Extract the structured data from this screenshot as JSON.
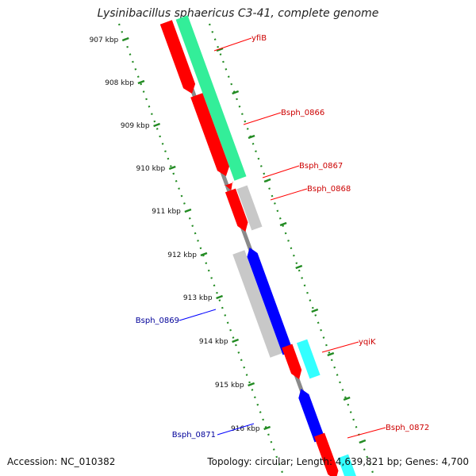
{
  "title": "Lysinibacillus sphaericus C3-41, complete genome",
  "footer": {
    "accession": "Accession: NC_010382",
    "summary": "Topology: circular; Length: 4,639,821 bp; Genes: 4,700"
  },
  "colors": {
    "forward_gene": "#ff0000",
    "reverse_gene": "#0000ff",
    "forward_label": "#cc0000",
    "reverse_label": "#000099",
    "green_feature": "#33ee99",
    "cyan_feature": "#33ffff",
    "gray_feature": "#c8c8c8",
    "backbone": "#8a8a8a",
    "tick": "#228b22"
  },
  "ticks": [
    "907 kbp",
    "908 kbp",
    "909 kbp",
    "910 kbp",
    "911 kbp",
    "912 kbp",
    "913 kbp",
    "914 kbp",
    "915 kbp",
    "916 kbp"
  ],
  "genes": [
    {
      "name": "yfiB",
      "strand": "forward"
    },
    {
      "name": "Bsph_0866",
      "strand": "forward"
    },
    {
      "name": "Bsph_0867",
      "strand": "forward"
    },
    {
      "name": "Bsph_0868",
      "strand": "forward"
    },
    {
      "name": "Bsph_0869",
      "strand": "reverse"
    },
    {
      "name": "yqiK",
      "strand": "forward"
    },
    {
      "name": "Bsph_0871",
      "strand": "reverse"
    },
    {
      "name": "Bsph_0872",
      "strand": "forward"
    }
  ]
}
